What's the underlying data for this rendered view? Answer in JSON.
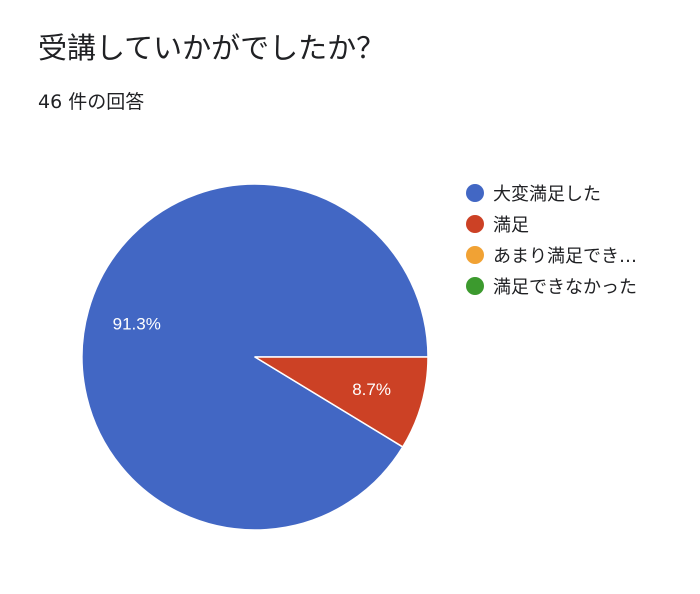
{
  "title": "受講していかがでしたか？",
  "subtitle": "46 件の回答",
  "chart_data": {
    "type": "pie",
    "title": "受講していかがでしたか？",
    "subtitle": "46 件の回答",
    "categories": [
      "大変満足した",
      "満足",
      "あまり満足でき…",
      "満足できなかった"
    ],
    "values": [
      91.3,
      8.7,
      0,
      0
    ],
    "value_labels": [
      "91.3%",
      "8.7%",
      "",
      ""
    ],
    "colors": [
      "#4267C4",
      "#CC4125",
      "#F1A234",
      "#3C9A2E"
    ],
    "legend_position": "right",
    "start_angle_deg": 0,
    "direction": "counterclockwise"
  }
}
